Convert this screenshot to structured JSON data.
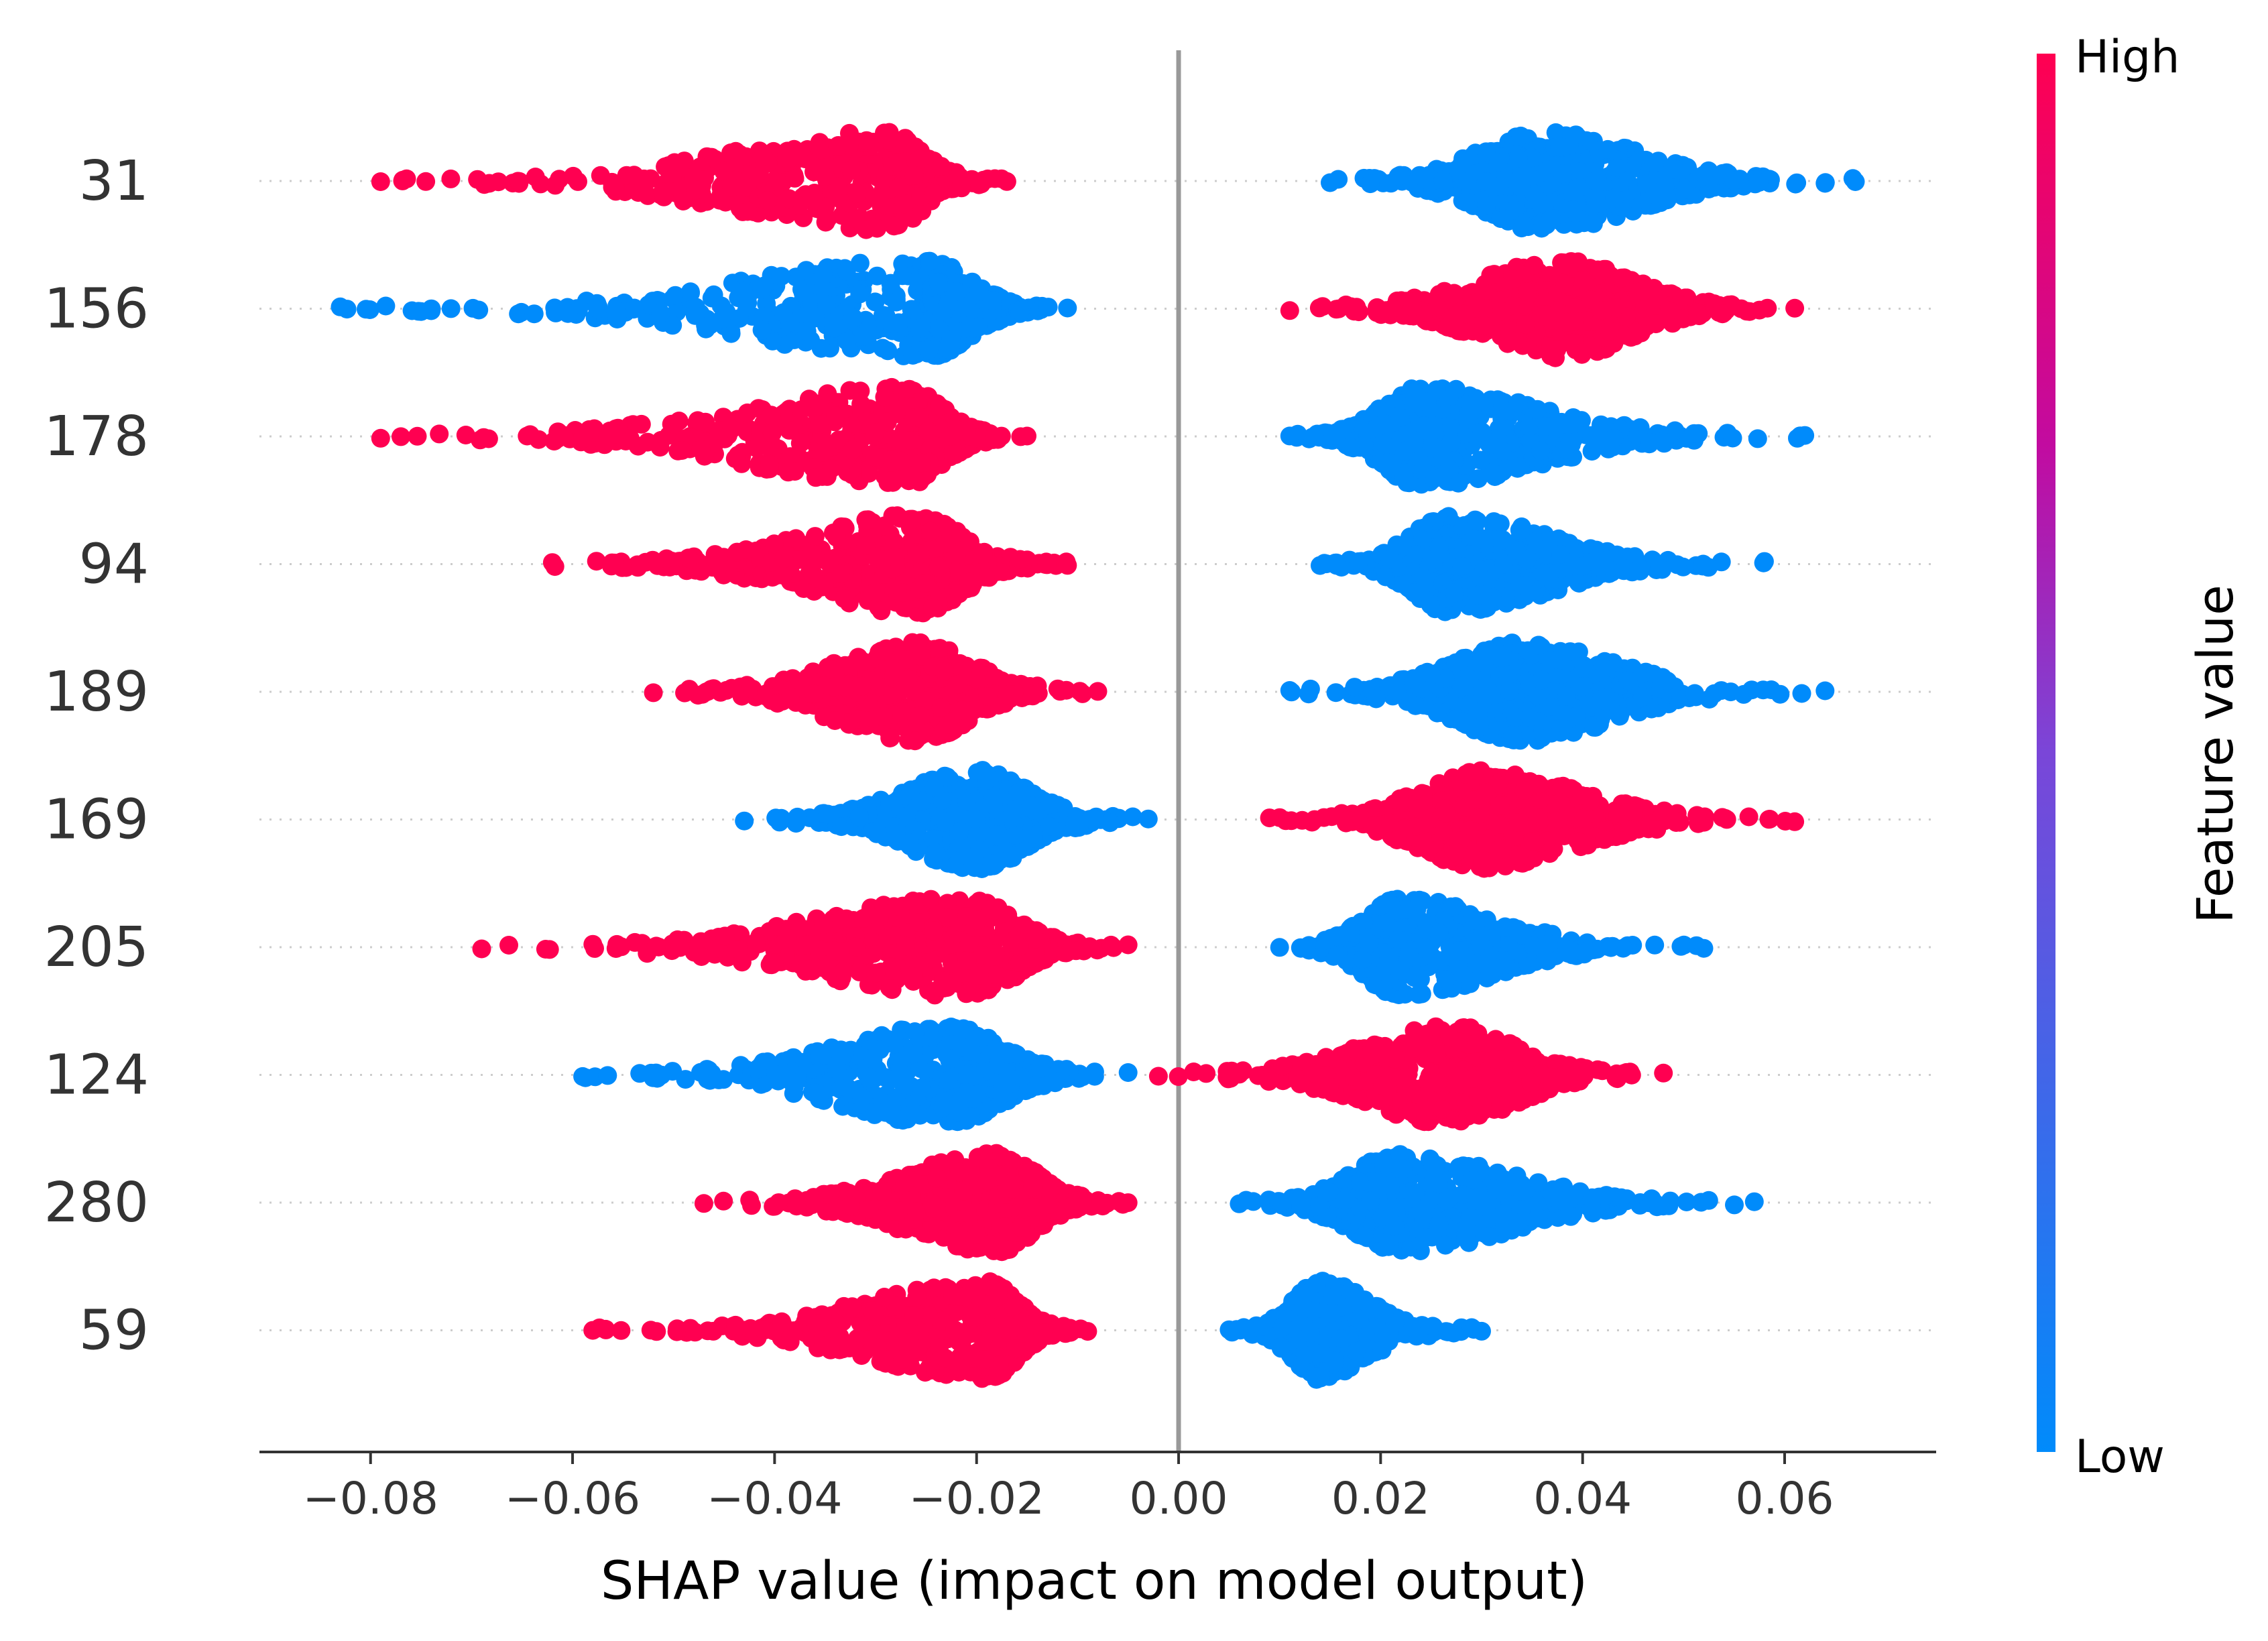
{
  "chart_data": {
    "type": "scatter",
    "subtype": "shap-beeswarm-summary",
    "title": "",
    "xlabel": "SHAP value (impact on model output)",
    "ylabel": "",
    "xlim": [
      -0.091,
      0.075
    ],
    "xticks": [
      "−0.08",
      "−0.06",
      "−0.04",
      "−0.02",
      "0.00",
      "0.02",
      "0.04",
      "0.06"
    ],
    "xtick_values": [
      -0.08,
      -0.06,
      -0.04,
      -0.02,
      0.0,
      0.02,
      0.04,
      0.06
    ],
    "zero_line": true,
    "grid": false,
    "colorbar": {
      "label": "Feature value",
      "high_label": "High",
      "low_label": "Low",
      "high_color": "#ff0051",
      "low_color": "#008bfb",
      "placement": "right"
    },
    "features": [
      {
        "name": "31",
        "high_range": [
          -0.079,
          -0.017
        ],
        "high_center": -0.029,
        "low_range": [
          0.015,
          0.067
        ],
        "low_center": 0.036
      },
      {
        "name": "156",
        "high_range": [
          0.011,
          0.061
        ],
        "high_center": 0.038,
        "low_range": [
          -0.083,
          -0.011
        ],
        "low_center": -0.025
      },
      {
        "name": "178",
        "high_range": [
          -0.079,
          -0.015
        ],
        "high_center": -0.027,
        "low_range": [
          0.011,
          0.062
        ],
        "low_center": 0.024
      },
      {
        "name": "94",
        "high_range": [
          -0.062,
          -0.011
        ],
        "high_center": -0.026,
        "low_range": [
          0.014,
          0.058
        ],
        "low_center": 0.027
      },
      {
        "name": "189",
        "high_range": [
          -0.052,
          -0.008
        ],
        "high_center": -0.026,
        "low_range": [
          0.011,
          0.064
        ],
        "low_center": 0.034
      },
      {
        "name": "169",
        "high_range": [
          0.009,
          0.061
        ],
        "high_center": 0.03,
        "low_range": [
          -0.043,
          -0.003
        ],
        "low_center": -0.02
      },
      {
        "name": "205",
        "high_range": [
          -0.069,
          -0.005
        ],
        "high_center": -0.021,
        "low_range": [
          0.01,
          0.052
        ],
        "low_center": 0.022
      },
      {
        "name": "124",
        "high_range": [
          -0.002,
          0.048
        ],
        "high_center": 0.027,
        "low_range": [
          -0.059,
          -0.005
        ],
        "low_center": -0.023
      },
      {
        "name": "280",
        "high_range": [
          -0.047,
          -0.005
        ],
        "high_center": -0.018,
        "low_range": [
          0.006,
          0.057
        ],
        "low_center": 0.022
      },
      {
        "name": "59",
        "high_range": [
          -0.058,
          -0.009
        ],
        "high_center": -0.019,
        "low_range": [
          0.005,
          0.03
        ],
        "low_center": 0.014
      }
    ]
  }
}
